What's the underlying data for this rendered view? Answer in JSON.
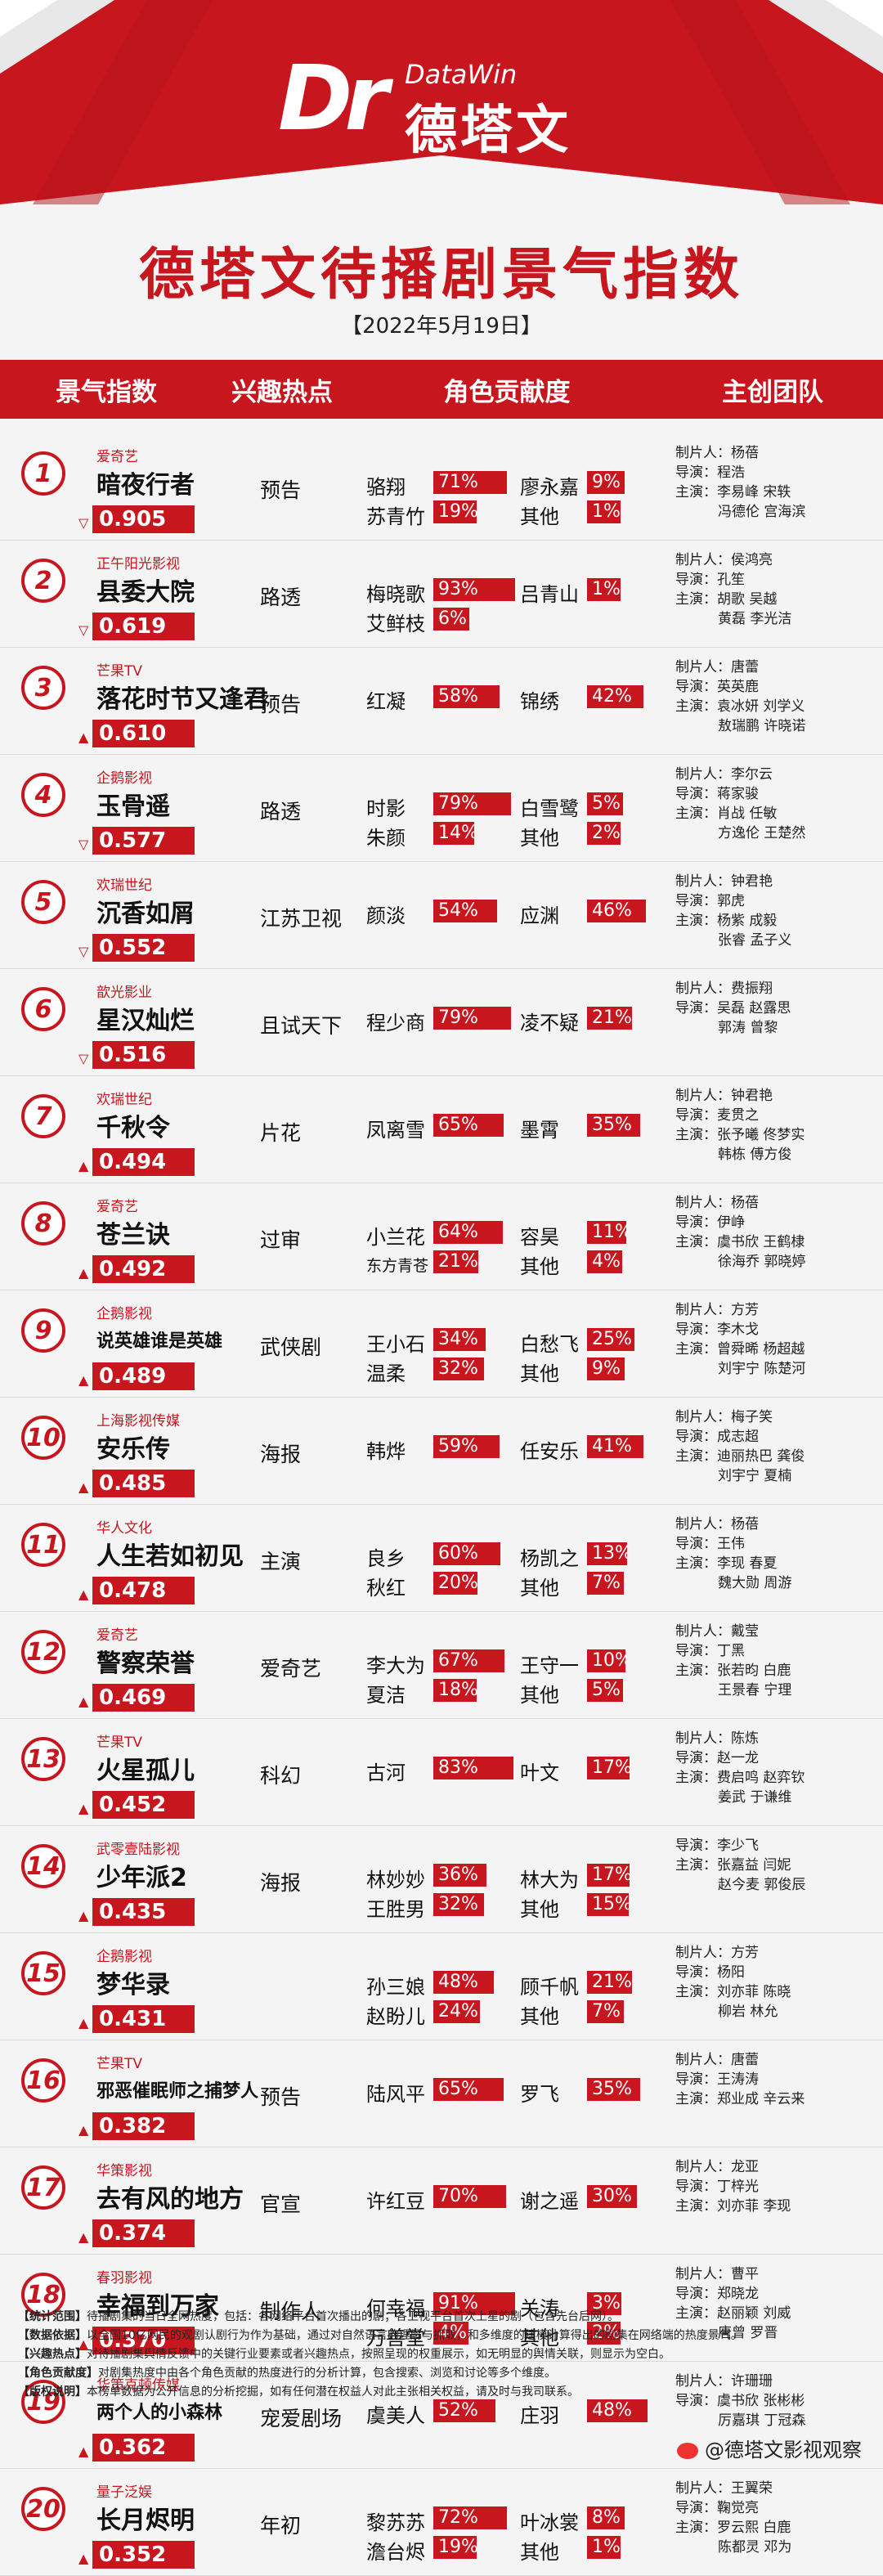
{
  "header": {
    "logo_en": "DataWin",
    "logo_cn": "德塔文",
    "title": "德塔文待播剧景气指数",
    "date": "【2022年5月19日】"
  },
  "columns": [
    "景气指数",
    "兴趣热点",
    "角色贡献度",
    "主创团队"
  ],
  "colors": {
    "accent": "#c8161e",
    "background": "#f4f4f4"
  },
  "chart_data": {
    "type": "table",
    "title": "德塔文待播剧景气指数",
    "rows": [
      {
        "rank": "1",
        "trend": "down",
        "company": "爱奇艺",
        "name": "暗夜行者",
        "score": "0.905",
        "hot": "预告",
        "roles": [
          {
            "name": "骆翔",
            "pct": "71%"
          },
          {
            "name": "廖永嘉",
            "pct": "9%"
          },
          {
            "name": "苏青竹",
            "pct": "19%"
          },
          {
            "name": "其他",
            "pct": "1%"
          }
        ],
        "team": [
          {
            "label": "制片人：",
            "names": "杨蓓"
          },
          {
            "label": "导演：",
            "names": "程浩"
          },
          {
            "label": "主演：",
            "names": "李易峰 宋轶"
          },
          {
            "label": "",
            "names": "冯德伦 宫海滨"
          }
        ]
      },
      {
        "rank": "2",
        "trend": "down",
        "company": "正午阳光影视",
        "name": "县委大院",
        "score": "0.619",
        "hot": "路透",
        "roles": [
          {
            "name": "梅晓歌",
            "pct": "93%"
          },
          {
            "name": "吕青山",
            "pct": "1%"
          },
          {
            "name": "艾鲜枝",
            "pct": "6%"
          }
        ],
        "team": [
          {
            "label": "制片人：",
            "names": "侯鸿亮"
          },
          {
            "label": "导演：",
            "names": "孔笙"
          },
          {
            "label": "主演：",
            "names": "胡歌 吴越"
          },
          {
            "label": "",
            "names": "黄磊 李光洁"
          }
        ]
      },
      {
        "rank": "3",
        "trend": "up",
        "company": "芒果TV",
        "name": "落花时节又逢君",
        "score": "0.610",
        "hot": "预告",
        "roles": [
          {
            "name": "红凝",
            "pct": "58%"
          },
          {
            "name": "锦绣",
            "pct": "42%"
          }
        ],
        "team": [
          {
            "label": "制片人：",
            "names": "唐蕾"
          },
          {
            "label": "导演：",
            "names": "英英鹿"
          },
          {
            "label": "主演：",
            "names": "袁冰妍 刘学义"
          },
          {
            "label": "",
            "names": "敖瑞鹏 许晓诺"
          }
        ]
      },
      {
        "rank": "4",
        "trend": "down",
        "company": "企鹅影视",
        "name": "玉骨遥",
        "score": "0.577",
        "hot": "路透",
        "roles": [
          {
            "name": "时影",
            "pct": "79%"
          },
          {
            "name": "白雪鹭",
            "pct": "5%"
          },
          {
            "name": "朱颜",
            "pct": "14%"
          },
          {
            "name": "其他",
            "pct": "2%"
          }
        ],
        "team": [
          {
            "label": "制片人：",
            "names": "李尔云"
          },
          {
            "label": "导演：",
            "names": "蒋家骏"
          },
          {
            "label": "主演：",
            "names": "肖战 任敏"
          },
          {
            "label": "",
            "names": "方逸伦 王楚然"
          }
        ]
      },
      {
        "rank": "5",
        "trend": "down",
        "company": "欢瑞世纪",
        "name": "沉香如屑",
        "score": "0.552",
        "hot": "江苏卫视",
        "roles": [
          {
            "name": "颜淡",
            "pct": "54%"
          },
          {
            "name": "应渊",
            "pct": "46%"
          }
        ],
        "team": [
          {
            "label": "制片人：",
            "names": "钟君艳"
          },
          {
            "label": "导演：",
            "names": "郭虎"
          },
          {
            "label": "主演：",
            "names": "杨紫 成毅"
          },
          {
            "label": "",
            "names": "张睿 孟子义"
          }
        ]
      },
      {
        "rank": "6",
        "trend": "down",
        "company": "歆光影业",
        "name": "星汉灿烂",
        "score": "0.516",
        "hot": "且试天下",
        "roles": [
          {
            "name": "程少商",
            "pct": "79%"
          },
          {
            "name": "凌不疑",
            "pct": "21%"
          }
        ],
        "team": [
          {
            "label": "制片人：",
            "names": "费振翔"
          },
          {
            "label": "导演：",
            "names": "吴磊 赵露思"
          },
          {
            "label": "",
            "names": "郭涛 曾黎"
          }
        ]
      },
      {
        "rank": "7",
        "trend": "up",
        "company": "欢瑞世纪",
        "name": "千秋令",
        "score": "0.494",
        "hot": "片花",
        "roles": [
          {
            "name": "凤离雪",
            "pct": "65%"
          },
          {
            "name": "墨霄",
            "pct": "35%"
          }
        ],
        "team": [
          {
            "label": "制片人：",
            "names": "钟君艳"
          },
          {
            "label": "导演：",
            "names": "麦贯之"
          },
          {
            "label": "主演：",
            "names": "张予曦 佟梦实"
          },
          {
            "label": "",
            "names": "韩栋 傅方俊"
          }
        ]
      },
      {
        "rank": "8",
        "trend": "up",
        "company": "爱奇艺",
        "name": "苍兰诀",
        "score": "0.492",
        "hot": "过审",
        "roles": [
          {
            "name": "小兰花",
            "pct": "64%"
          },
          {
            "name": "容昊",
            "pct": "11%"
          },
          {
            "name": "东方青苍",
            "pct": "21%",
            "small": true
          },
          {
            "name": "其他",
            "pct": "4%"
          }
        ],
        "team": [
          {
            "label": "制片人：",
            "names": "杨蓓"
          },
          {
            "label": "导演：",
            "names": "伊峥"
          },
          {
            "label": "主演：",
            "names": "虞书欣 王鹤棣"
          },
          {
            "label": "",
            "names": "徐海乔 郭晓婷"
          }
        ]
      },
      {
        "rank": "9",
        "trend": "up",
        "company": "企鹅影视",
        "name": "说英雄谁是英雄",
        "score": "0.489",
        "hot": "武侠剧",
        "small": true,
        "roles": [
          {
            "name": "王小石",
            "pct": "34%"
          },
          {
            "name": "白愁飞",
            "pct": "25%"
          },
          {
            "name": "温柔",
            "pct": "32%"
          },
          {
            "name": "其他",
            "pct": "9%"
          }
        ],
        "team": [
          {
            "label": "制片人：",
            "names": "方芳"
          },
          {
            "label": "导演：",
            "names": "李木戈"
          },
          {
            "label": "主演：",
            "names": "曾舜晞 杨超越"
          },
          {
            "label": "",
            "names": "刘宇宁 陈楚河"
          }
        ]
      },
      {
        "rank": "10",
        "trend": "up",
        "company": "上海影视传媒",
        "name": "安乐传",
        "score": "0.485",
        "hot": "海报",
        "roles": [
          {
            "name": "韩烨",
            "pct": "59%"
          },
          {
            "name": "任安乐",
            "pct": "41%"
          }
        ],
        "team": [
          {
            "label": "制片人：",
            "names": "梅子笑"
          },
          {
            "label": "导演：",
            "names": "成志超"
          },
          {
            "label": "主演：",
            "names": "迪丽热巴 龚俊"
          },
          {
            "label": "",
            "names": "刘宇宁 夏楠"
          }
        ]
      },
      {
        "rank": "11",
        "trend": "up",
        "company": "华人文化",
        "name": "人生若如初见",
        "score": "0.478",
        "hot": "主演",
        "roles": [
          {
            "name": "良乡",
            "pct": "60%"
          },
          {
            "name": "杨凯之",
            "pct": "13%"
          },
          {
            "name": "秋红",
            "pct": "20%"
          },
          {
            "name": "其他",
            "pct": "7%"
          }
        ],
        "team": [
          {
            "label": "制片人：",
            "names": "杨蓓"
          },
          {
            "label": "导演：",
            "names": "王伟"
          },
          {
            "label": "主演：",
            "names": "李现 春夏"
          },
          {
            "label": "",
            "names": "魏大勋 周游"
          }
        ]
      },
      {
        "rank": "12",
        "trend": "up",
        "company": "爱奇艺",
        "name": "警察荣誉",
        "score": "0.469",
        "hot": "爱奇艺",
        "roles": [
          {
            "name": "李大为",
            "pct": "67%"
          },
          {
            "name": "王守一",
            "pct": "10%"
          },
          {
            "name": "夏洁",
            "pct": "18%"
          },
          {
            "name": "其他",
            "pct": "5%"
          }
        ],
        "team": [
          {
            "label": "制片人：",
            "names": "戴莹"
          },
          {
            "label": "导演：",
            "names": "丁黑"
          },
          {
            "label": "主演：",
            "names": "张若昀 白鹿"
          },
          {
            "label": "",
            "names": "王景春 宁理"
          }
        ]
      },
      {
        "rank": "13",
        "trend": "up",
        "company": "芒果TV",
        "name": "火星孤儿",
        "score": "0.452",
        "hot": "科幻",
        "roles": [
          {
            "name": "古河",
            "pct": "83%"
          },
          {
            "name": "叶文",
            "pct": "17%"
          }
        ],
        "team": [
          {
            "label": "制片人：",
            "names": "陈炼"
          },
          {
            "label": "导演：",
            "names": "赵一龙"
          },
          {
            "label": "主演：",
            "names": "费启鸣 赵弈钦"
          },
          {
            "label": "",
            "names": "姜武 于谦维"
          }
        ]
      },
      {
        "rank": "14",
        "trend": "up",
        "company": "武零壹陆影视",
        "name": "少年派2",
        "score": "0.435",
        "hot": "海报",
        "roles": [
          {
            "name": "林妙妙",
            "pct": "36%"
          },
          {
            "name": "林大为",
            "pct": "17%"
          },
          {
            "name": "王胜男",
            "pct": "32%"
          },
          {
            "name": "其他",
            "pct": "15%"
          }
        ],
        "team": [
          {
            "label": "导演：",
            "names": "李少飞"
          },
          {
            "label": "主演：",
            "names": "张嘉益 闫妮"
          },
          {
            "label": "",
            "names": "赵今麦 郭俊辰"
          }
        ]
      },
      {
        "rank": "15",
        "trend": "up",
        "company": "企鹅影视",
        "name": "梦华录",
        "score": "0.431",
        "hot": "",
        "roles": [
          {
            "name": "孙三娘",
            "pct": "48%"
          },
          {
            "name": "顾千帆",
            "pct": "21%"
          },
          {
            "name": "赵盼儿",
            "pct": "24%"
          },
          {
            "name": "其他",
            "pct": "7%"
          }
        ],
        "team": [
          {
            "label": "制片人：",
            "names": "方芳"
          },
          {
            "label": "导演：",
            "names": "杨阳"
          },
          {
            "label": "主演：",
            "names": "刘亦菲 陈晓"
          },
          {
            "label": "",
            "names": "柳岩 林允"
          }
        ]
      },
      {
        "rank": "16",
        "trend": "up",
        "company": "芒果TV",
        "name": "邪恶催眠师之捕梦人",
        "score": "0.382",
        "hot": "预告",
        "small": true,
        "roles": [
          {
            "name": "陆风平",
            "pct": "65%"
          },
          {
            "name": "罗飞",
            "pct": "35%"
          }
        ],
        "team": [
          {
            "label": "制片人：",
            "names": "唐蕾"
          },
          {
            "label": "导演：",
            "names": "王涛涛"
          },
          {
            "label": "主演：",
            "names": "郑业成 辛云来"
          }
        ]
      },
      {
        "rank": "17",
        "trend": "up",
        "company": "华策影视",
        "name": "去有风的地方",
        "score": "0.374",
        "hot": "官宣",
        "roles": [
          {
            "name": "许红豆",
            "pct": "70%"
          },
          {
            "name": "谢之遥",
            "pct": "30%"
          }
        ],
        "team": [
          {
            "label": "制片人：",
            "names": "龙亚"
          },
          {
            "label": "导演：",
            "names": "丁梓光"
          },
          {
            "label": "主演：",
            "names": "刘亦菲 李现"
          }
        ]
      },
      {
        "rank": "18",
        "trend": "up",
        "company": "春羽影视",
        "name": "幸福到万家",
        "score": "0.370",
        "hot": "制作人",
        "roles": [
          {
            "name": "何幸福",
            "pct": "91%"
          },
          {
            "name": "关涛",
            "pct": "3%"
          },
          {
            "name": "万善堂",
            "pct": "4%"
          },
          {
            "name": "其他",
            "pct": "2%"
          }
        ],
        "team": [
          {
            "label": "制片人：",
            "names": "曹平"
          },
          {
            "label": "导演：",
            "names": "郑晓龙"
          },
          {
            "label": "主演：",
            "names": "赵丽颖 刘威"
          },
          {
            "label": "",
            "names": "唐曾 罗晋"
          }
        ]
      },
      {
        "rank": "19",
        "trend": "up",
        "company": "华策克顿传媒",
        "name": "两个人的小森林",
        "score": "0.362",
        "hot": "宠爱剧场",
        "small": true,
        "roles": [
          {
            "name": "虞美人",
            "pct": "52%"
          },
          {
            "name": "庄羽",
            "pct": "48%"
          }
        ],
        "team": [
          {
            "label": "制片人：",
            "names": "许珊珊"
          },
          {
            "label": "导演：",
            "names": "虞书欣 张彬彬"
          },
          {
            "label": "",
            "names": "厉嘉琪 丁冠森"
          }
        ]
      },
      {
        "rank": "20",
        "trend": "up",
        "company": "量子泛娱",
        "name": "长月烬明",
        "score": "0.352",
        "hot": "年初",
        "roles": [
          {
            "name": "黎苏苏",
            "pct": "72%"
          },
          {
            "name": "叶冰裳",
            "pct": "8%"
          },
          {
            "name": "澹台烬",
            "pct": "19%"
          },
          {
            "name": "其他",
            "pct": "1%"
          }
        ],
        "team": [
          {
            "label": "制片人：",
            "names": "王翼荣"
          },
          {
            "label": "导演：",
            "names": "鞠觉亮"
          },
          {
            "label": "主演：",
            "names": "罗云熙 白鹿"
          },
          {
            "label": "",
            "names": "陈都灵 邓为"
          }
        ]
      }
    ]
  },
  "notes": [
    {
      "k": "【统计范围】",
      "v": "待播剧集的当日全网热度，包括：各网络平台首次播出的剧；各卫视平台首次上星的剧（包含先台后网）。"
    },
    {
      "k": "【数据依据】",
      "v": "以全国10亿网民的观剧认剧行为作为基础，通过对自然语言的理解与抓取，和多维度的建模计算得出的剧集在网络端的热度景气。"
    },
    {
      "k": "【兴趣热点】",
      "v": "对待播剧集舆情反馈中的关键行业要素或者兴趣热点，按照呈现的权重展示，如无明显的舆情关联，则显示为空白。"
    },
    {
      "k": "【角色贡献度】",
      "v": "对剧集热度中由各个角色贡献的热度进行的分析计算，包含搜索、浏览和讨论等多个维度。"
    },
    {
      "k": "【版权说明】",
      "v": "本榜单数据为公开信息的分析挖掘，如有任何潜在权益人对此主张相关权益，请及时与我司联系。"
    }
  ],
  "footer": "@德塔文影视观察"
}
